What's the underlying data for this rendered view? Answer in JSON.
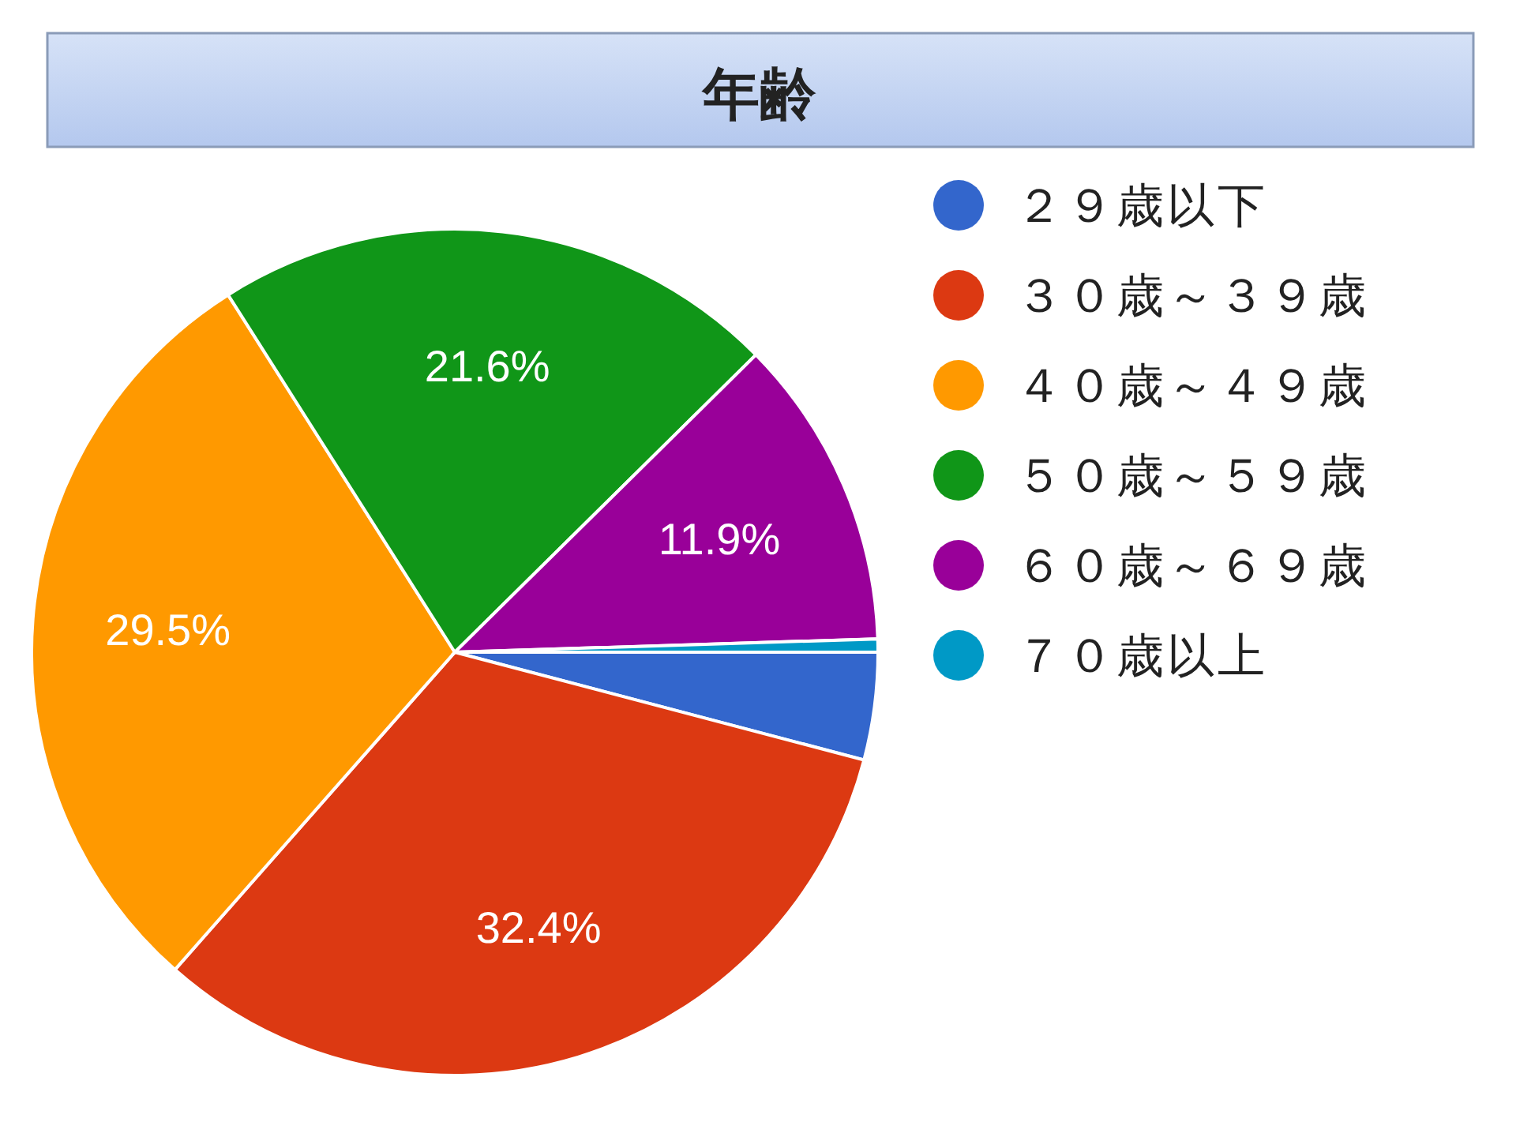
{
  "chart_data": {
    "type": "pie",
    "title": "年齢",
    "categories": [
      "２９歳以下",
      "３０歳～３９歳",
      "４０歳～４９歳",
      "５０歳～５９歳",
      "６０歳～６９歳",
      "７０歳以上"
    ],
    "values": [
      4.1,
      32.4,
      29.5,
      21.6,
      11.9,
      0.5
    ],
    "colors": [
      "#3366cc",
      "#dc3912",
      "#ff9900",
      "#109618",
      "#990099",
      "#0099c6"
    ],
    "value_labels": [
      null,
      "32.4%",
      "29.5%",
      "21.6%",
      "11.9%",
      null
    ],
    "legend": "right"
  }
}
